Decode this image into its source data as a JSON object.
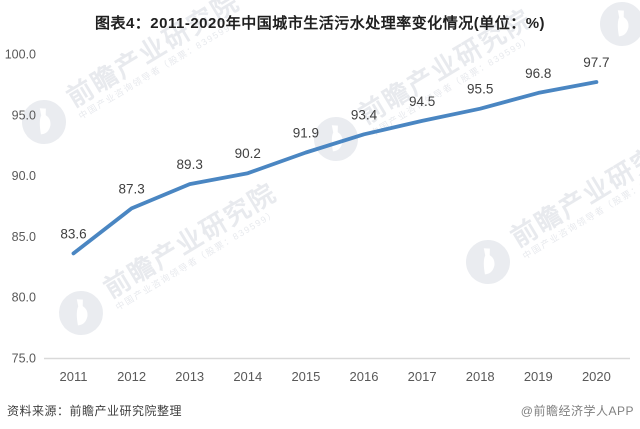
{
  "title": "图表4：2011-2020年中国城市生活污水处理率变化情况(单位：%)",
  "chart_data": {
    "type": "line",
    "title": "图表4：2011-2020年中国城市生活污水处理率变化情况(单位：%)",
    "categories": [
      "2011",
      "2012",
      "2013",
      "2014",
      "2015",
      "2016",
      "2017",
      "2018",
      "2019",
      "2020"
    ],
    "values": [
      83.6,
      87.3,
      89.3,
      90.2,
      91.9,
      93.4,
      94.5,
      95.5,
      96.8,
      97.7
    ],
    "xlabel": "",
    "ylabel": "",
    "ylim": [
      75,
      100
    ],
    "yticks": [
      "75.0",
      "80.0",
      "85.0",
      "90.0",
      "95.0",
      "100.0"
    ],
    "grid": false,
    "legend": false,
    "unit": "%"
  },
  "watermark": {
    "text": "前瞻产业研究院",
    "subtext": "中国产业咨询领导者（股票：839599）"
  },
  "footer": {
    "source": "资料来源：前瞻产业研究院整理",
    "attribution": "@前瞻经济学人APP"
  },
  "colors": {
    "line": "#4a86c2",
    "point_label": "#404040",
    "axis_text": "#595959",
    "axis_line": "#d9d9d9",
    "watermark": "#e8eaee"
  }
}
